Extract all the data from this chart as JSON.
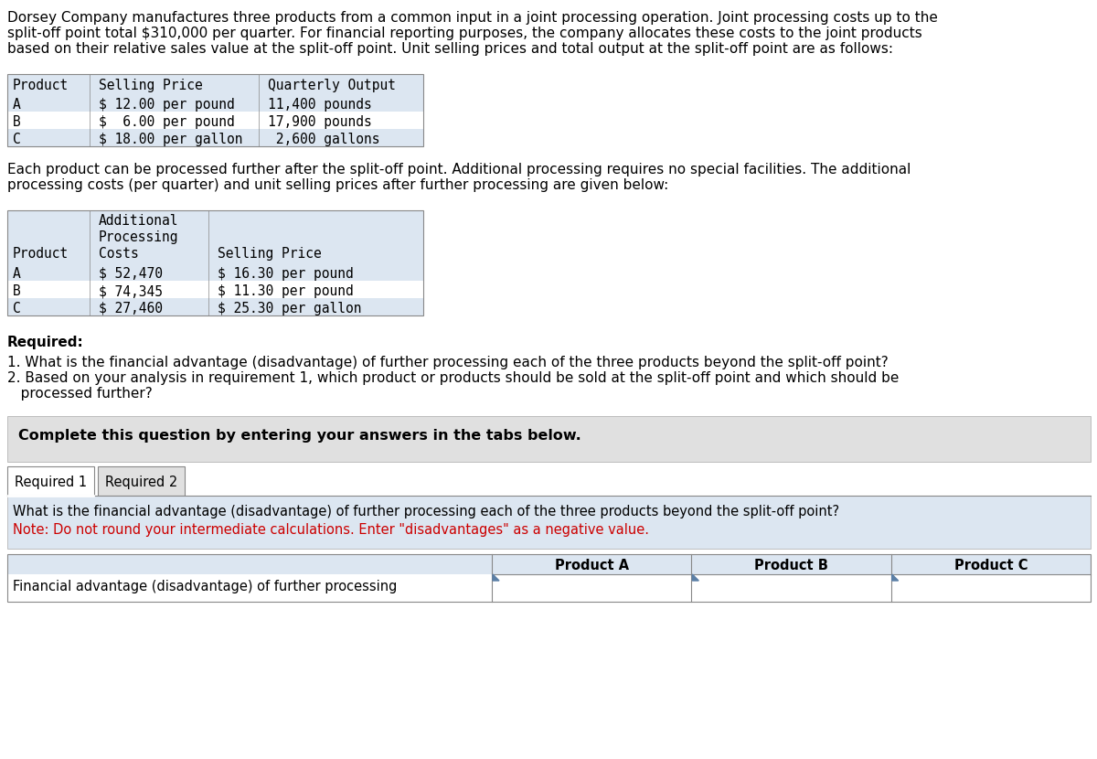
{
  "intro_text_lines": [
    "Dorsey Company manufactures three products from a common input in a joint processing operation. Joint processing costs up to the",
    "split-off point total $310,000 per quarter. For financial reporting purposes, the company allocates these costs to the joint products",
    "based on their relative sales value at the split-off point. Unit selling prices and total output at the split-off point are as follows:"
  ],
  "table1_header": [
    "Product",
    "Selling Price",
    "Quarterly Output"
  ],
  "table1_rows": [
    [
      "A",
      "$ 12.00 per pound",
      "11,400 pounds"
    ],
    [
      "B",
      "$  6.00 per pound",
      "17,900 pounds"
    ],
    [
      "C",
      "$ 18.00 per gallon",
      " 2,600 gallons"
    ]
  ],
  "middle_text_lines": [
    "Each product can be processed further after the split-off point. Additional processing requires no special facilities. The additional",
    "processing costs (per quarter) and unit selling prices after further processing are given below:"
  ],
  "table2_rows": [
    [
      "A",
      "$ 52,470",
      "$ 16.30 per pound"
    ],
    [
      "B",
      "$ 74,345",
      "$ 11.30 per pound"
    ],
    [
      "C",
      "$ 27,460",
      "$ 25.30 per gallon"
    ]
  ],
  "required_label": "Required:",
  "required_item1": "1. What is the financial advantage (disadvantage) of further processing each of the three products beyond the split-off point?",
  "required_item2a": "2. Based on your analysis in requirement 1, which product or products should be sold at the split-off point and which should be",
  "required_item2b": "   processed further?",
  "complete_text": "Complete this question by entering your answers in the tabs below.",
  "tab1_label": "Required 1",
  "tab2_label": "Required 2",
  "req2_question": "What is the financial advantage (disadvantage) of further processing each of the three products beyond the split-off point?",
  "req2_note": "Note: Do not round your intermediate calculations. Enter \"disadvantages\" as a negative value.",
  "answer_col_headers": [
    "Product A",
    "Product B",
    "Product C"
  ],
  "answer_row_label": "Financial advantage (disadvantage) of further processing",
  "bg_white": "#ffffff",
  "bg_light_blue": "#dce6f1",
  "bg_light_blue2": "#cdd9ea",
  "bg_light_gray": "#e0e0e0",
  "color_red": "#cc0000",
  "color_black": "#000000",
  "border_color": "#aaaaaa",
  "border_dark": "#888888"
}
